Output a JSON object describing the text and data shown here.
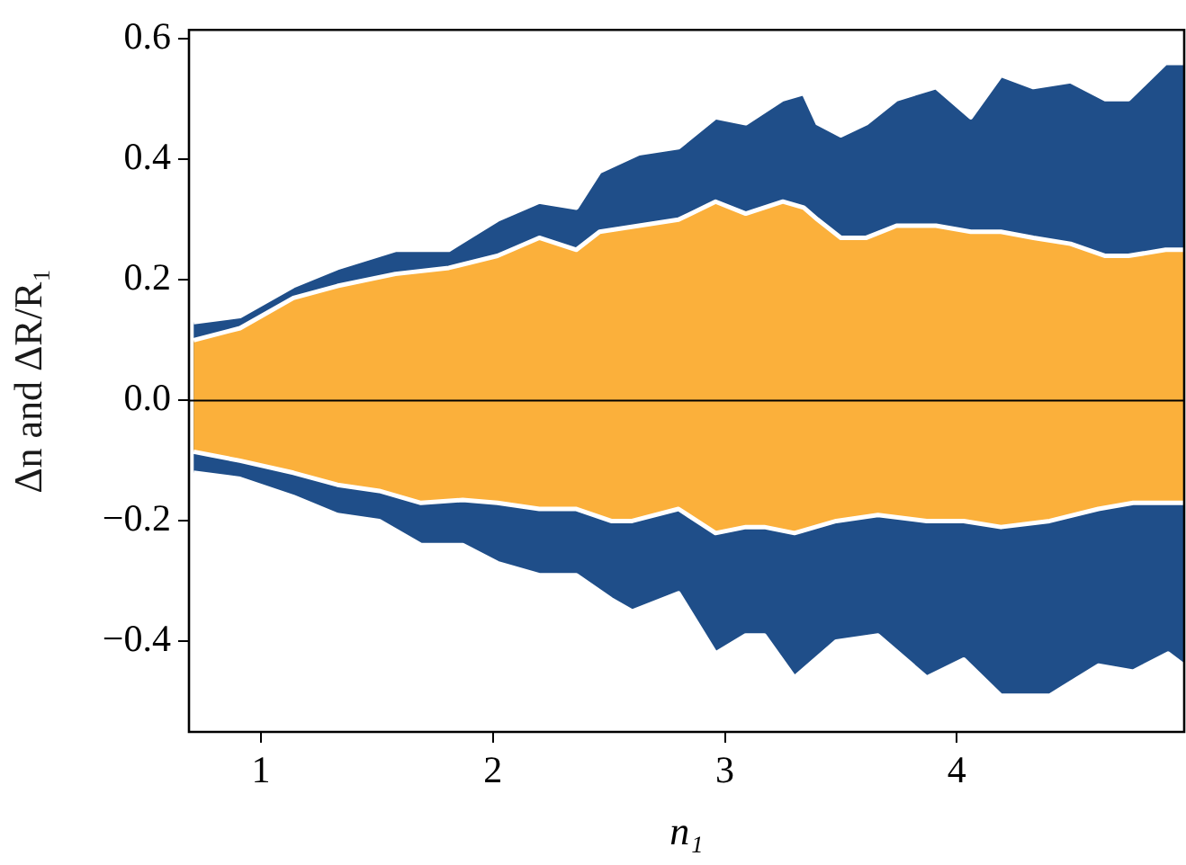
{
  "chart_data": {
    "type": "area",
    "xlabel": "n₁",
    "ylabel": "Δn and ΔR/R₁",
    "xlim": [
      0.69,
      4.98
    ],
    "ylim": [
      -0.55,
      0.615
    ],
    "xticks": [
      1,
      2,
      3,
      4
    ],
    "yticks": [
      {
        "value": -0.4,
        "label": "−0.4"
      },
      {
        "value": -0.2,
        "label": "−0.2"
      },
      {
        "value": 0,
        "label": "0.0"
      },
      0.2,
      0.4,
      0.6
    ],
    "grid": false,
    "legend": false,
    "marker": "none",
    "ref_lines": [
      {
        "axis": "y",
        "value": 0,
        "color": "#000000"
      }
    ],
    "series": [
      {
        "color": "#1f4e89",
        "x": [
          0.71,
          0.91,
          1.14,
          1.33,
          1.58,
          1.81,
          2.02,
          2.2,
          2.36,
          2.46,
          2.63,
          2.8,
          2.96,
          3.09,
          3.25,
          3.34,
          3.4,
          3.5,
          3.61,
          3.74,
          3.91,
          4.06,
          4.19,
          4.33,
          4.49,
          4.64,
          4.74,
          4.9,
          4.98
        ],
        "values": [
          0.13,
          0.14,
          0.19,
          0.22,
          0.25,
          0.25,
          0.3,
          0.33,
          0.32,
          0.38,
          0.41,
          0.42,
          0.47,
          0.46,
          0.5,
          0.51,
          0.46,
          0.44,
          0.46,
          0.5,
          0.52,
          0.47,
          0.54,
          0.52,
          0.53,
          0.5,
          0.5,
          0.56,
          0.56
        ]
      },
      {
        "color": "#1f4e89",
        "x": [
          0.71,
          0.91,
          1.14,
          1.33,
          1.51,
          1.69,
          1.87,
          2.02,
          2.2,
          2.36,
          2.51,
          2.6,
          2.8,
          2.96,
          3.09,
          3.17,
          3.3,
          3.48,
          3.66,
          3.87,
          4.03,
          4.19,
          4.4,
          4.61,
          4.76,
          4.91,
          4.98
        ],
        "values": [
          -0.12,
          -0.13,
          -0.16,
          -0.19,
          -0.2,
          -0.24,
          -0.24,
          -0.27,
          -0.29,
          -0.29,
          -0.33,
          -0.35,
          -0.32,
          -0.42,
          -0.39,
          -0.39,
          -0.46,
          -0.4,
          -0.39,
          -0.46,
          -0.43,
          -0.49,
          -0.49,
          -0.44,
          -0.45,
          -0.42,
          -0.44
        ]
      },
      {
        "color": "#fbb03b",
        "x": [
          0.71,
          0.91,
          1.14,
          1.33,
          1.58,
          1.81,
          2.02,
          2.2,
          2.36,
          2.46,
          2.63,
          2.8,
          2.96,
          3.09,
          3.25,
          3.34,
          3.4,
          3.5,
          3.61,
          3.74,
          3.91,
          4.06,
          4.19,
          4.33,
          4.49,
          4.64,
          4.74,
          4.9,
          4.98
        ],
        "values": [
          0.1,
          0.12,
          0.17,
          0.19,
          0.21,
          0.22,
          0.24,
          0.27,
          0.25,
          0.28,
          0.29,
          0.3,
          0.33,
          0.31,
          0.33,
          0.32,
          0.3,
          0.27,
          0.27,
          0.29,
          0.29,
          0.28,
          0.28,
          0.27,
          0.26,
          0.24,
          0.24,
          0.25,
          0.25
        ]
      },
      {
        "color": "#fbb03b",
        "x": [
          0.71,
          0.91,
          1.14,
          1.33,
          1.51,
          1.69,
          1.87,
          2.02,
          2.2,
          2.36,
          2.51,
          2.6,
          2.8,
          2.96,
          3.09,
          3.17,
          3.3,
          3.48,
          3.66,
          3.87,
          4.03,
          4.19,
          4.4,
          4.61,
          4.76,
          4.91,
          4.98
        ],
        "values": [
          -0.085,
          -0.1,
          -0.12,
          -0.14,
          -0.15,
          -0.17,
          -0.165,
          -0.17,
          -0.18,
          -0.18,
          -0.2,
          -0.2,
          -0.18,
          -0.22,
          -0.21,
          -0.21,
          -0.22,
          -0.2,
          -0.19,
          -0.2,
          -0.2,
          -0.21,
          -0.2,
          -0.18,
          -0.17,
          -0.17,
          -0.17
        ]
      }
    ]
  }
}
